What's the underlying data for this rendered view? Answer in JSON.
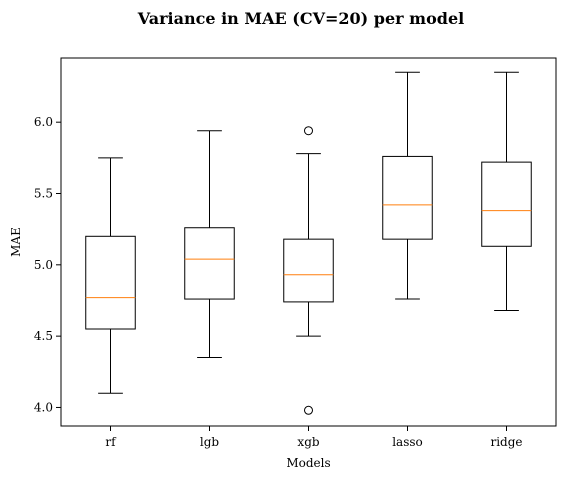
{
  "chart_data": {
    "type": "boxplot",
    "title": "Variance in MAE (CV=20) per model",
    "xlabel": "Models",
    "ylabel": "MAE",
    "categories": [
      "rf",
      "lgb",
      "xgb",
      "lasso",
      "ridge"
    ],
    "ylim": [
      3.87,
      6.45
    ],
    "yticks": [
      4.0,
      4.5,
      5.0,
      5.5,
      6.0
    ],
    "ytick_labels": [
      "4.0",
      "4.5",
      "5.0",
      "5.5",
      "6.0"
    ],
    "boxes": [
      {
        "category": "rf",
        "whisker_low": 4.1,
        "q1": 4.55,
        "median": 4.77,
        "q3": 5.2,
        "whisker_high": 5.75,
        "outliers": []
      },
      {
        "category": "lgb",
        "whisker_low": 4.35,
        "q1": 4.76,
        "median": 5.04,
        "q3": 5.26,
        "whisker_high": 5.94,
        "outliers": []
      },
      {
        "category": "xgb",
        "whisker_low": 4.5,
        "q1": 4.74,
        "median": 4.93,
        "q3": 5.18,
        "whisker_high": 5.78,
        "outliers": [
          5.94,
          3.98
        ]
      },
      {
        "category": "lasso",
        "whisker_low": 4.76,
        "q1": 5.18,
        "median": 5.42,
        "q3": 5.76,
        "whisker_high": 6.35,
        "outliers": []
      },
      {
        "category": "ridge",
        "whisker_low": 4.68,
        "q1": 5.13,
        "median": 5.38,
        "q3": 5.72,
        "whisker_high": 6.35,
        "outliers": []
      }
    ],
    "grid": false,
    "colors": {
      "box": "#000000",
      "median": "#ff7f0e",
      "outlier": "#000000"
    }
  }
}
